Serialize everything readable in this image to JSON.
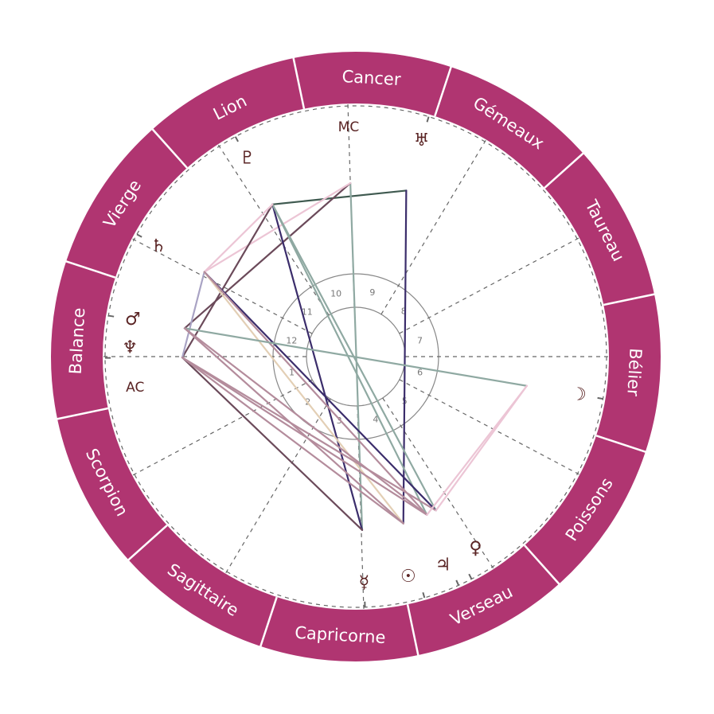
{
  "colors": {
    "ring": "#b03571",
    "ring_separator": "#ffffff",
    "glyph": "#5a2424",
    "cusp": "#666666",
    "circle": "#888888"
  },
  "signs": [
    {
      "label": "Bélier"
    },
    {
      "label": "Taureau"
    },
    {
      "label": "Gémeaux"
    },
    {
      "label": "Cancer"
    },
    {
      "label": "Lion"
    },
    {
      "label": "Vierge"
    },
    {
      "label": "Balance"
    },
    {
      "label": "Scorpion"
    },
    {
      "label": "Sagittaire"
    },
    {
      "label": "Capricorne"
    },
    {
      "label": "Verseau"
    },
    {
      "label": "Poissons"
    }
  ],
  "angles": [
    {
      "id": "asc",
      "label": "AC",
      "longitude": 198.2
    },
    {
      "id": "mc",
      "label": "MC",
      "longitude": 110.0
    }
  ],
  "houses": [
    {
      "number": "1",
      "cusp": 198.2
    },
    {
      "number": "2",
      "cusp": 226.2
    },
    {
      "number": "3",
      "cusp": 257.2
    },
    {
      "number": "4",
      "cusp": 290.0
    },
    {
      "number": "5",
      "cusp": 321.2
    },
    {
      "number": "6",
      "cusp": 350.4
    },
    {
      "number": "7",
      "cusp": 18.2
    },
    {
      "number": "8",
      "cusp": 46.2
    },
    {
      "number": "9",
      "cusp": 77.2
    },
    {
      "number": "10",
      "cusp": 110.0
    },
    {
      "number": "11",
      "cusp": 141.2
    },
    {
      "number": "12",
      "cusp": 170.4
    }
  ],
  "planets": [
    {
      "id": "moon",
      "glyph": "☽",
      "longitude": 8.5
    },
    {
      "id": "uranus",
      "glyph": "♅",
      "longitude": 91.3
    },
    {
      "id": "pluto",
      "glyph": "♇",
      "longitude": 136.9
    },
    {
      "id": "saturn",
      "glyph": "♄",
      "longitude": 169.0
    },
    {
      "id": "mars",
      "glyph": "♂",
      "longitude": 188.8
    },
    {
      "id": "neptune",
      "glyph": "♆",
      "longitude": 198.5
    },
    {
      "id": "mercury",
      "glyph": "☿",
      "longitude": 290.3
    },
    {
      "id": "sun",
      "glyph": "☉",
      "longitude": 304.1
    },
    {
      "id": "jupiter",
      "glyph": "♃",
      "longitude": 312.4
    },
    {
      "id": "venus",
      "glyph": "♀",
      "longitude": 315.7
    }
  ],
  "aspects": [
    {
      "from": "pluto",
      "to": "uranus",
      "color": "#3f5a50"
    },
    {
      "from": "uranus",
      "to": "sun",
      "color": "#3b2d6b"
    },
    {
      "from": "mc",
      "to": "mercury",
      "color": "#8fa9a2"
    },
    {
      "from": "mc",
      "to": "mars",
      "color": "#6b4a5a"
    },
    {
      "from": "mc",
      "to": "saturn",
      "color": "#ecc5d5"
    },
    {
      "from": "pluto",
      "to": "mercury",
      "color": "#3b2d6b"
    },
    {
      "from": "pluto",
      "to": "jupiter",
      "color": "#8fa9a2"
    },
    {
      "from": "pluto",
      "to": "venus",
      "color": "#8fa9a2"
    },
    {
      "from": "pluto",
      "to": "neptune",
      "color": "#6b4a5a"
    },
    {
      "from": "pluto",
      "to": "saturn",
      "color": "#ecc5d5"
    },
    {
      "from": "saturn",
      "to": "venus",
      "color": "#3b2d6b"
    },
    {
      "from": "saturn",
      "to": "neptune",
      "color": "#a9a3c4"
    },
    {
      "from": "saturn",
      "to": "sun",
      "color": "#e3cfb5"
    },
    {
      "from": "saturn",
      "to": "jupiter",
      "color": "#b48c9c"
    },
    {
      "from": "mars",
      "to": "moon",
      "color": "#8fa9a2"
    },
    {
      "from": "mars",
      "to": "sun",
      "color": "#b48c9c"
    },
    {
      "from": "mars",
      "to": "jupiter",
      "color": "#b48c9c"
    },
    {
      "from": "neptune",
      "to": "mercury",
      "color": "#6b4a5a"
    },
    {
      "from": "neptune",
      "to": "sun",
      "color": "#b48c9c"
    },
    {
      "from": "neptune",
      "to": "jupiter",
      "color": "#b48c9c"
    },
    {
      "from": "neptune",
      "to": "venus",
      "color": "#b48c9c"
    },
    {
      "from": "moon",
      "to": "jupiter",
      "color": "#ecc5d5"
    },
    {
      "from": "moon",
      "to": "venus",
      "color": "#ecc5d5"
    }
  ]
}
